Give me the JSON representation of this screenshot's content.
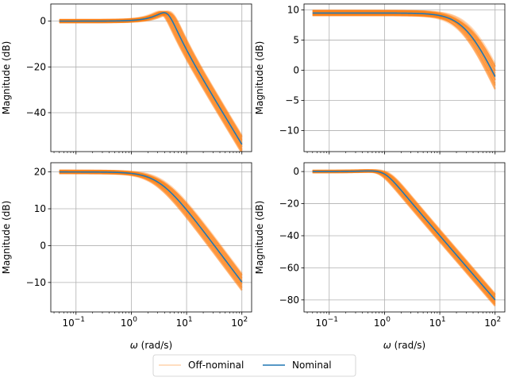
{
  "colors": {
    "nominal": "#1f77b4",
    "off_nominal": "#ff7f0e",
    "grid": "#b0b0b0",
    "frame": "#000000"
  },
  "legend": {
    "placement": "bottom-center",
    "entries": [
      {
        "label": "Off-nominal",
        "color": "#ff7f0e",
        "style": "light-line"
      },
      {
        "label": "Nominal",
        "color": "#1f77b4",
        "style": "line"
      }
    ]
  },
  "chart_data": [
    {
      "type": "line",
      "panel": "top-left",
      "xscale": "log",
      "xlim": [
        0.035,
        150
      ],
      "ylim": [
        -57,
        7.5
      ],
      "xlabel": "",
      "ylabel": "Magnitude (dB)",
      "x_tick_labels": [],
      "y_ticks": [
        0,
        -20,
        -40
      ],
      "y_tick_labels": [
        "0",
        "−20",
        "−40"
      ],
      "grid": true,
      "system": {
        "kind": "second-order",
        "dc_gain_db": 0,
        "wn": 4.5,
        "zeta": 0.35
      },
      "spread": {
        "wn_factor": 1.25,
        "gain_db": 0.6
      },
      "series": [
        {
          "name": "Nominal",
          "x": [
            0.05,
            0.5,
            1,
            2,
            3.5,
            4.5,
            6,
            10,
            30,
            100
          ],
          "y": [
            0,
            0.1,
            0.4,
            1.6,
            2.8,
            2.8,
            -1.0,
            -9,
            -28.6,
            -52
          ]
        }
      ]
    },
    {
      "type": "line",
      "panel": "top-right",
      "xscale": "log",
      "xlim": [
        0.035,
        150
      ],
      "ylim": [
        -13.5,
        11
      ],
      "xlabel": "",
      "ylabel": "Magnitude (dB)",
      "x_tick_labels": [],
      "y_ticks": [
        10,
        5,
        0,
        -5,
        -10
      ],
      "y_tick_labels": [
        "10",
        "5",
        "0",
        "−5",
        "−10"
      ],
      "grid": true,
      "system": {
        "kind": "first-order",
        "dc_gain_db": 9.5,
        "wc": 31
      },
      "spread": {
        "wn_factor": 1.3,
        "gain_db": 0.4
      },
      "series": [
        {
          "name": "Nominal",
          "x": [
            0.05,
            1,
            5,
            10,
            20,
            31,
            50,
            100
          ],
          "y": [
            9.5,
            9.5,
            9.4,
            9.1,
            8.0,
            6.5,
            3.7,
            -1.2
          ]
        }
      ]
    },
    {
      "type": "line",
      "panel": "bottom-left",
      "xscale": "log",
      "xlim": [
        0.035,
        150
      ],
      "ylim": [
        -18,
        22.5
      ],
      "xlabel": "ω (rad/s)",
      "ylabel": "Magnitude (dB)",
      "x_ticks": [
        0.1,
        1,
        10,
        100
      ],
      "x_tick_labels": [
        "10",
        "10",
        "10",
        "10"
      ],
      "x_tick_exponents": [
        "−1",
        "0",
        "1",
        "2"
      ],
      "y_ticks": [
        20,
        10,
        0,
        -10
      ],
      "y_tick_labels": [
        "20",
        "10",
        "0",
        "−10"
      ],
      "grid": true,
      "system": {
        "kind": "first-order",
        "dc_gain_db": 20,
        "wc": 3.2
      },
      "spread": {
        "wn_factor": 1.3,
        "gain_db": 0.4
      },
      "series": [
        {
          "name": "Nominal",
          "x": [
            0.05,
            0.5,
            1,
            3.2,
            10,
            30,
            100
          ],
          "y": [
            20,
            19.9,
            19.6,
            17,
            10.5,
            1.4,
            -14
          ]
        }
      ]
    },
    {
      "type": "line",
      "panel": "bottom-right",
      "xscale": "log",
      "xlim": [
        0.035,
        150
      ],
      "ylim": [
        -87.5,
        5.5
      ],
      "xlabel": "ω (rad/s)",
      "ylabel": "Magnitude (dB)",
      "x_ticks": [
        0.1,
        1,
        10,
        100
      ],
      "x_tick_labels": [
        "10",
        "10",
        "10",
        "10"
      ],
      "x_tick_exponents": [
        "−1",
        "0",
        "1",
        "2"
      ],
      "y_ticks": [
        0,
        -20,
        -40,
        -60,
        -80
      ],
      "y_tick_labels": [
        "0",
        "−20",
        "−40",
        "−60",
        "−80"
      ],
      "grid": true,
      "system": {
        "kind": "second-order",
        "dc_gain_db": 0,
        "wn": 1.0,
        "zeta": 0.6
      },
      "spread": {
        "wn_factor": 1.25,
        "gain_db": 0.6
      },
      "series": [
        {
          "name": "Nominal",
          "x": [
            0.05,
            0.5,
            0.8,
            1,
            2,
            10,
            100
          ],
          "y": [
            0,
            0.4,
            0.6,
            0,
            -11,
            -40,
            -80
          ]
        }
      ]
    }
  ]
}
